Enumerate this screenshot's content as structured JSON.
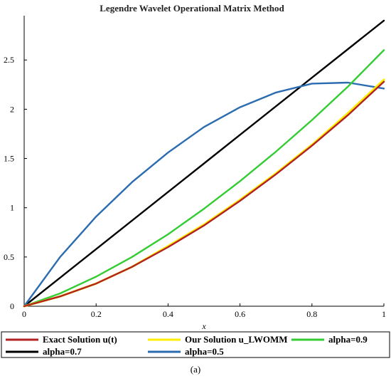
{
  "caption": "(a)",
  "chart_data": {
    "type": "line",
    "title": "Legendre Wavelet Operational Matrix Method",
    "xlabel": "x",
    "ylabel": "",
    "xlim": [
      0,
      1
    ],
    "ylim": [
      0,
      2.95
    ],
    "x_ticks": [
      "0",
      "0.2",
      "0.4",
      "0.6",
      "0.8",
      "1"
    ],
    "y_ticks": [
      "0",
      "0.5",
      "1",
      "1.5",
      "2",
      "2.5"
    ],
    "grid": false,
    "legend_position": "bottom",
    "series": [
      {
        "name": "Exact Solution u(t)",
        "color": "#b22222",
        "x": [
          0,
          0.1,
          0.2,
          0.3,
          0.4,
          0.5,
          0.6,
          0.7,
          0.8,
          0.9,
          1.0
        ],
        "y": [
          0,
          0.1,
          0.23,
          0.4,
          0.6,
          0.82,
          1.07,
          1.34,
          1.63,
          1.94,
          2.28
        ]
      },
      {
        "name": "Our Solution u_LWOMM",
        "color": "#ffee00",
        "x": [
          0,
          0.1,
          0.2,
          0.3,
          0.4,
          0.5,
          0.6,
          0.7,
          0.8,
          0.9,
          1.0
        ],
        "y": [
          0,
          0.1,
          0.23,
          0.4,
          0.61,
          0.83,
          1.08,
          1.35,
          1.64,
          1.96,
          2.3
        ]
      },
      {
        "name": "alpha=0.9",
        "color": "#33cc33",
        "x": [
          0,
          0.1,
          0.2,
          0.3,
          0.4,
          0.5,
          0.6,
          0.7,
          0.8,
          0.9,
          1.0
        ],
        "y": [
          0,
          0.13,
          0.3,
          0.5,
          0.73,
          0.99,
          1.27,
          1.57,
          1.89,
          2.23,
          2.6
        ]
      },
      {
        "name": "alpha=0.7",
        "color": "#000000",
        "x": [
          0,
          0.1,
          0.2,
          0.3,
          0.4,
          0.5,
          0.6,
          0.7,
          0.8,
          0.9,
          1.0
        ],
        "y": [
          0,
          0.29,
          0.58,
          0.87,
          1.16,
          1.45,
          1.74,
          2.03,
          2.32,
          2.61,
          2.9
        ]
      },
      {
        "name": "alpha=0.5",
        "color": "#2b6cb0",
        "x": [
          0,
          0.1,
          0.2,
          0.3,
          0.4,
          0.5,
          0.6,
          0.7,
          0.8,
          0.9,
          1.0
        ],
        "y": [
          0,
          0.5,
          0.91,
          1.26,
          1.56,
          1.82,
          2.02,
          2.17,
          2.26,
          2.27,
          2.21
        ]
      }
    ]
  }
}
